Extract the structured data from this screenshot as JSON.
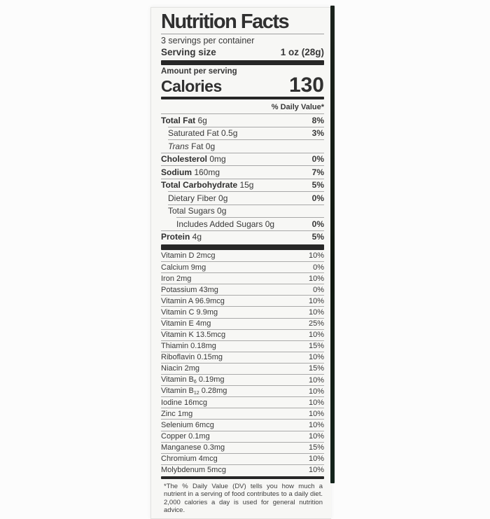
{
  "label": {
    "title": "Nutrition Facts",
    "servings_per_container": "3 servings per container",
    "serving_size_label": "Serving size",
    "serving_size_value": "1 oz (28g)",
    "amount_per_serving": "Amount per serving",
    "calories_label": "Calories",
    "calories_value": "130",
    "daily_value_header": "% Daily Value*",
    "footnote": "*The % Daily Value (DV) tells you how much a nutrient in a serving of food contributes to a daily diet. 2,000 calories a day is used for general nutrition advice."
  },
  "nutrients": [
    {
      "bold": "Total Fat",
      "rest": " 6g",
      "dv": "8%",
      "indent": 0
    },
    {
      "rest": "Saturated Fat 0.5g",
      "dv": "3%",
      "indent": 1
    },
    {
      "italic": "Trans",
      "rest": " Fat 0g",
      "dv": "",
      "indent": 1
    },
    {
      "bold": "Cholesterol",
      "rest": " 0mg",
      "dv": "0%",
      "indent": 0
    },
    {
      "bold": "Sodium",
      "rest": " 160mg",
      "dv": "7%",
      "indent": 0
    },
    {
      "bold": "Total Carbohydrate",
      "rest": " 15g",
      "dv": "5%",
      "indent": 0
    },
    {
      "rest": "Dietary Fiber 0g",
      "dv": "0%",
      "indent": 1
    },
    {
      "rest": "Total Sugars 0g",
      "dv": "",
      "indent": 1
    },
    {
      "rest": "Includes Added Sugars 0g",
      "dv": "0%",
      "indent": 2
    },
    {
      "bold": "Protein",
      "rest": " 4g",
      "dv": "5%",
      "indent": 0
    }
  ],
  "vitamins": [
    {
      "name": "Vitamin D 2mcg",
      "dv": "10%"
    },
    {
      "name": "Calcium 9mg",
      "dv": "0%"
    },
    {
      "name": "Iron 2mg",
      "dv": "10%"
    },
    {
      "name": "Potassium 43mg",
      "dv": "0%"
    },
    {
      "name": "Vitamin A 96.9mcg",
      "dv": "10%"
    },
    {
      "name": "Vitamin C 9.9mg",
      "dv": "10%"
    },
    {
      "name": "Vitamin E 4mg",
      "dv": "25%"
    },
    {
      "name": "Vitamin K 13.5mcg",
      "dv": "10%"
    },
    {
      "name": "Thiamin 0.18mg",
      "dv": "15%"
    },
    {
      "name": "Riboflavin 0.15mg",
      "dv": "10%"
    },
    {
      "name": "Niacin 2mg",
      "dv": "15%"
    },
    {
      "name": "Vitamin B",
      "sub": "6",
      "rest": " 0.19mg",
      "dv": "10%"
    },
    {
      "name": "Vitamin B",
      "sub": "12",
      "rest": " 0.28mg",
      "dv": "10%"
    },
    {
      "name": "Iodine 16mcg",
      "dv": "10%"
    },
    {
      "name": "Zinc 1mg",
      "dv": "10%"
    },
    {
      "name": "Selenium 6mcg",
      "dv": "10%"
    },
    {
      "name": "Copper 0.1mg",
      "dv": "10%"
    },
    {
      "name": "Manganese 0.3mg",
      "dv": "15%"
    },
    {
      "name": "Chromium 4mcg",
      "dv": "10%"
    },
    {
      "name": "Molybdenum 5mcg",
      "dv": "10%"
    }
  ],
  "colors": {
    "label_bg": "#f7f7f5",
    "text": "#383838",
    "section_bar": "#272727",
    "hairline": "#a8a8a8",
    "package_edge": "#14241c"
  }
}
